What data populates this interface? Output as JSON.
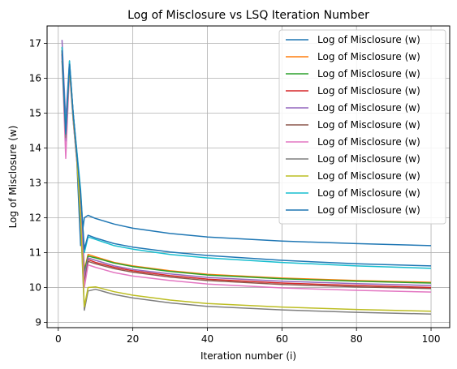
{
  "chart_data": {
    "type": "line",
    "title": "Log of Misclosure vs LSQ Iteration Number",
    "xlabel": "Iteration number (i)",
    "ylabel": "Log of Misclosure (w)",
    "xlim": [
      -3,
      105
    ],
    "ylim": [
      8.85,
      17.5
    ],
    "xticks": [
      0,
      20,
      40,
      60,
      80,
      100
    ],
    "yticks": [
      9,
      10,
      11,
      12,
      13,
      14,
      15,
      16,
      17
    ],
    "grid": true,
    "legend_position": "top-right",
    "x": [
      1,
      2,
      3,
      4,
      5,
      6,
      7,
      8,
      10,
      15,
      20,
      30,
      40,
      60,
      80,
      100
    ],
    "series": [
      {
        "name": "Log of Misclosure (w)",
        "color": "#1f77b4",
        "values": [
          16.7,
          14.2,
          16.3,
          14.8,
          13.6,
          11.2,
          12.0,
          12.07,
          11.98,
          11.82,
          11.7,
          11.55,
          11.45,
          11.33,
          11.26,
          11.2
        ]
      },
      {
        "name": "Log of Misclosure (w)",
        "color": "#ff7f0e",
        "values": [
          16.9,
          14.5,
          16.4,
          15.0,
          13.8,
          12.5,
          10.5,
          10.95,
          10.88,
          10.72,
          10.62,
          10.48,
          10.38,
          10.27,
          10.2,
          10.15
        ]
      },
      {
        "name": "Log of Misclosure (w)",
        "color": "#2ca02c",
        "values": [
          16.8,
          14.6,
          16.4,
          15.0,
          13.8,
          12.4,
          10.45,
          10.9,
          10.85,
          10.7,
          10.6,
          10.46,
          10.36,
          10.25,
          10.18,
          10.13
        ]
      },
      {
        "name": "Log of Misclosure (w)",
        "color": "#d62728",
        "values": [
          16.7,
          14.4,
          16.3,
          14.9,
          13.7,
          12.3,
          10.2,
          10.8,
          10.72,
          10.58,
          10.48,
          10.34,
          10.24,
          10.13,
          10.06,
          10.0
        ]
      },
      {
        "name": "Log of Misclosure (w)",
        "color": "#9467bd",
        "values": [
          17.1,
          14.8,
          16.5,
          15.0,
          13.9,
          12.6,
          10.3,
          10.85,
          10.78,
          10.62,
          10.52,
          10.39,
          10.29,
          10.18,
          10.11,
          10.06
        ]
      },
      {
        "name": "Log of Misclosure (w)",
        "color": "#8c564b",
        "values": [
          16.6,
          14.3,
          16.3,
          14.9,
          13.7,
          12.3,
          10.1,
          10.75,
          10.68,
          10.54,
          10.44,
          10.3,
          10.2,
          10.09,
          10.02,
          9.97
        ]
      },
      {
        "name": "Log of Misclosure (w)",
        "color": "#e377c2",
        "values": [
          16.6,
          13.7,
          16.2,
          14.8,
          13.6,
          12.2,
          10.0,
          10.65,
          10.58,
          10.43,
          10.33,
          10.2,
          10.1,
          9.99,
          9.92,
          9.87
        ]
      },
      {
        "name": "Log of Misclosure (w)",
        "color": "#7f7f7f",
        "values": [
          16.5,
          14.3,
          16.3,
          14.9,
          13.7,
          11.9,
          9.35,
          9.9,
          9.95,
          9.8,
          9.7,
          9.56,
          9.46,
          9.36,
          9.29,
          9.24
        ]
      },
      {
        "name": "Log of Misclosure (w)",
        "color": "#bcbd22",
        "values": [
          16.8,
          14.4,
          16.3,
          14.9,
          13.7,
          12.0,
          9.45,
          10.0,
          10.02,
          9.88,
          9.78,
          9.64,
          9.54,
          9.44,
          9.37,
          9.32
        ]
      },
      {
        "name": "Log of Misclosure (w)",
        "color": "#17becf",
        "values": [
          16.9,
          14.5,
          16.5,
          15.0,
          13.9,
          12.8,
          11.0,
          11.45,
          11.38,
          11.2,
          11.1,
          10.95,
          10.85,
          10.72,
          10.62,
          10.55
        ]
      },
      {
        "name": "Log of Misclosure (w)",
        "color": "#1f77b4",
        "values": [
          16.8,
          14.4,
          16.4,
          15.0,
          13.8,
          12.7,
          11.1,
          11.5,
          11.42,
          11.26,
          11.16,
          11.02,
          10.92,
          10.78,
          10.68,
          10.62
        ]
      }
    ]
  }
}
